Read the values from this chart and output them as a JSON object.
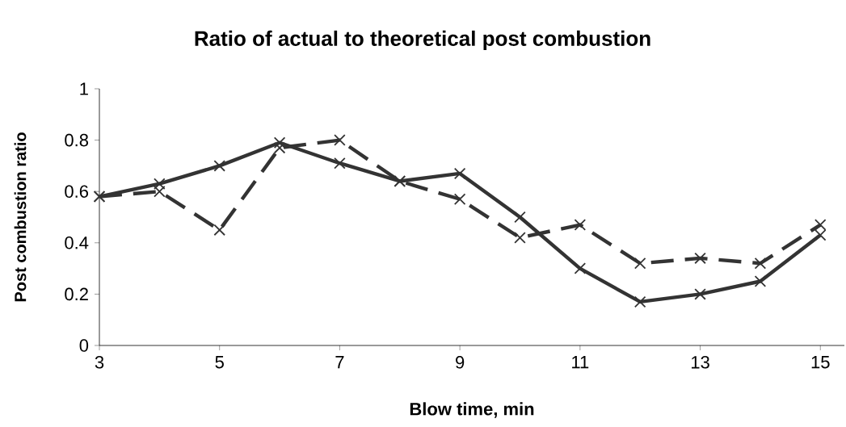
{
  "chart_data": {
    "type": "line",
    "title": "Ratio of actual to theoretical post combustion",
    "xlabel": "Blow time, min",
    "ylabel": "Post combustion ratio",
    "x": [
      3,
      4,
      5,
      6,
      7,
      8,
      9,
      10,
      11,
      12,
      13,
      14,
      15
    ],
    "series": [
      {
        "color": "#333333",
        "line_style": "solid",
        "marker": "cross",
        "values": [
          0.58,
          0.63,
          0.7,
          0.79,
          0.71,
          0.64,
          0.67,
          0.5,
          0.3,
          0.17,
          0.2,
          0.25,
          0.43
        ]
      },
      {
        "color": "#333333",
        "line_style": "dashed",
        "marker": "cross",
        "values": [
          0.58,
          0.6,
          0.45,
          0.77,
          0.8,
          0.64,
          0.57,
          0.42,
          0.47,
          0.32,
          0.34,
          0.32,
          0.47
        ]
      }
    ],
    "xlim": [
      3,
      15.4
    ],
    "ylim": [
      0,
      1
    ],
    "xticks": [
      3,
      5,
      7,
      9,
      11,
      13,
      15
    ],
    "yticks": [
      0,
      0.2,
      0.4,
      0.6,
      0.8,
      1
    ],
    "grid": false
  }
}
